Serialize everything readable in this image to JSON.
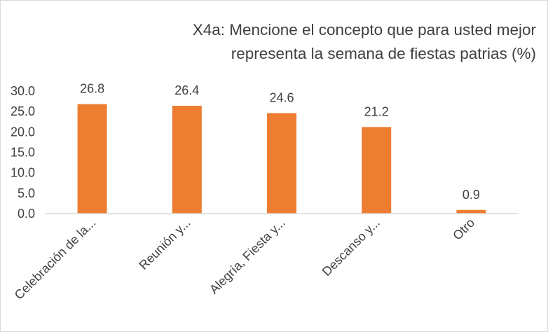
{
  "chart_data": {
    "type": "bar",
    "title_lines": [
      "X4a: Mencione el concepto que para usted mejor",
      "representa la semana de fiestas patrias (%)"
    ],
    "categories": [
      "Celebración de la...",
      "Reunión y...",
      "Alegría, Fiesta y...",
      "Descanso y...",
      "Otro"
    ],
    "values": [
      26.8,
      26.4,
      24.6,
      21.2,
      0.9
    ],
    "data_labels": [
      "26.8",
      "26.4",
      "24.6",
      "21.2",
      "0.9"
    ],
    "y_ticks": [
      "0.0",
      "5.0",
      "10.0",
      "15.0",
      "20.0",
      "25.0",
      "30.0"
    ],
    "ylim": [
      0,
      30
    ],
    "grid": false,
    "legend": "none",
    "bar_color": "#ED7D31",
    "axis_color": "#D9D9D9",
    "text_color": "#404040"
  }
}
